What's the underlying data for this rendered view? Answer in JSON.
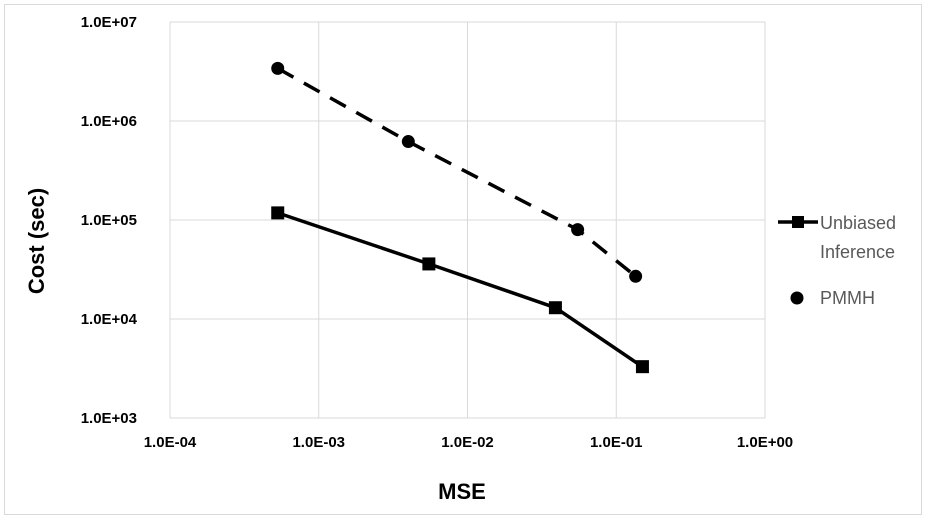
{
  "chart_data": {
    "type": "line",
    "xlabel": "MSE",
    "ylabel": "Cost (sec)",
    "x_scale": "log",
    "y_scale": "log",
    "xlim": [
      0.0001,
      1.0
    ],
    "ylim": [
      1000,
      10000000
    ],
    "x_ticks": [
      "1.0E-04",
      "1.0E-03",
      "1.0E-02",
      "1.0E-01",
      "1.0E+00"
    ],
    "y_ticks": [
      "1.0E+03",
      "1.0E+04",
      "1.0E+05",
      "1.0E+06",
      "1.0E+07"
    ],
    "grid": true,
    "legend_position": "right",
    "series": [
      {
        "name": "Unbiased Inference",
        "marker": "square",
        "line_style": "solid",
        "color": "#000000",
        "points": [
          [
            0.00053,
            118000
          ],
          [
            0.0055,
            36000
          ],
          [
            0.039,
            13000
          ],
          [
            0.15,
            3300
          ]
        ]
      },
      {
        "name": "PMMH",
        "marker": "circle",
        "line_style": "dashed",
        "color": "#000000",
        "points": [
          [
            0.00053,
            3400000
          ],
          [
            0.004,
            620000
          ],
          [
            0.055,
            80000
          ],
          [
            0.135,
            27000
          ]
        ]
      }
    ]
  }
}
